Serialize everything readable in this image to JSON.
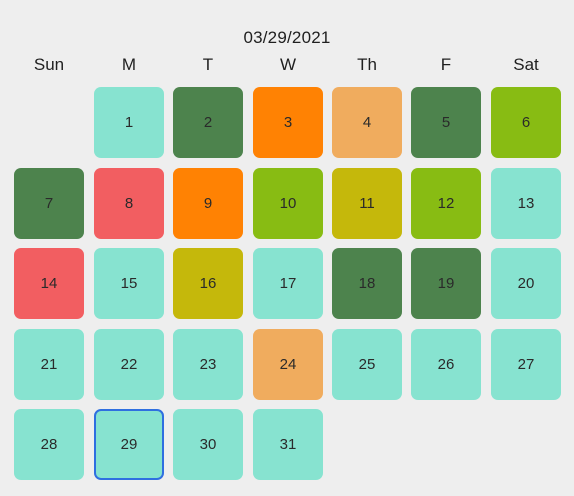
{
  "header": {
    "date": "03/29/2021"
  },
  "weekdays": [
    "Sun",
    "M",
    "T",
    "W",
    "Th",
    "F",
    "Sat"
  ],
  "first_weekday_index": 1,
  "selected_day": 29,
  "colors": {
    "mint": "#87e3d0",
    "dark_green": "#4d834d",
    "orange": "#ff8203",
    "light_orange": "#f0ac5e",
    "lime": "#88bc13",
    "red": "#f25e61",
    "olive": "#c5b80b",
    "selected_border": "#2f6fe0"
  },
  "days": [
    {
      "day": "1",
      "color": "mint"
    },
    {
      "day": "2",
      "color": "dark_green"
    },
    {
      "day": "3",
      "color": "orange"
    },
    {
      "day": "4",
      "color": "light_orange"
    },
    {
      "day": "5",
      "color": "dark_green"
    },
    {
      "day": "6",
      "color": "lime"
    },
    {
      "day": "7",
      "color": "dark_green"
    },
    {
      "day": "8",
      "color": "red"
    },
    {
      "day": "9",
      "color": "orange"
    },
    {
      "day": "10",
      "color": "lime"
    },
    {
      "day": "11",
      "color": "olive"
    },
    {
      "day": "12",
      "color": "lime"
    },
    {
      "day": "13",
      "color": "mint"
    },
    {
      "day": "14",
      "color": "red"
    },
    {
      "day": "15",
      "color": "mint"
    },
    {
      "day": "16",
      "color": "olive"
    },
    {
      "day": "17",
      "color": "mint"
    },
    {
      "day": "18",
      "color": "dark_green"
    },
    {
      "day": "19",
      "color": "dark_green"
    },
    {
      "day": "20",
      "color": "mint"
    },
    {
      "day": "21",
      "color": "mint"
    },
    {
      "day": "22",
      "color": "mint"
    },
    {
      "day": "23",
      "color": "mint"
    },
    {
      "day": "24",
      "color": "light_orange"
    },
    {
      "day": "25",
      "color": "mint"
    },
    {
      "day": "26",
      "color": "mint"
    },
    {
      "day": "27",
      "color": "mint"
    },
    {
      "day": "28",
      "color": "mint"
    },
    {
      "day": "29",
      "color": "mint"
    },
    {
      "day": "30",
      "color": "mint"
    },
    {
      "day": "31",
      "color": "mint"
    }
  ]
}
